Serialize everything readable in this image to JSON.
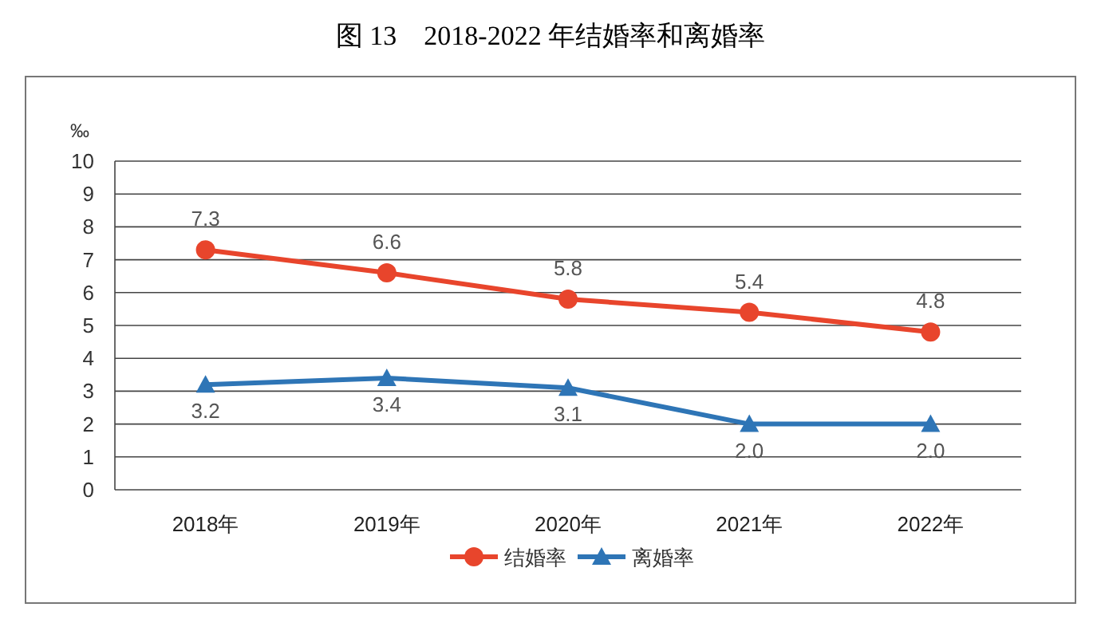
{
  "chart_data": {
    "type": "line",
    "title": "图 13    2018-2022 年结婚率和离婚率",
    "ylabel": "‰",
    "categories": [
      "2018年",
      "2019年",
      "2020年",
      "2021年",
      "2022年"
    ],
    "series": [
      {
        "name": "结婚率",
        "color": "#e8452c",
        "marker": "circle",
        "values": [
          7.3,
          6.6,
          5.8,
          5.4,
          4.8
        ],
        "value_labels": [
          "7.3",
          "6.6",
          "5.8",
          "5.4",
          "4.8"
        ]
      },
      {
        "name": "离婚率",
        "color": "#2e75b6",
        "marker": "triangle",
        "values": [
          3.2,
          3.4,
          3.1,
          2.0,
          2.0
        ],
        "value_labels": [
          "3.2",
          "3.4",
          "3.1",
          "2.0",
          "2.0"
        ]
      }
    ],
    "ylim": [
      0,
      10
    ],
    "yticks": [
      0,
      1,
      2,
      3,
      4,
      5,
      6,
      7,
      8,
      9,
      10
    ],
    "grid": "y",
    "legend": "bottom",
    "line_style": "solid"
  }
}
